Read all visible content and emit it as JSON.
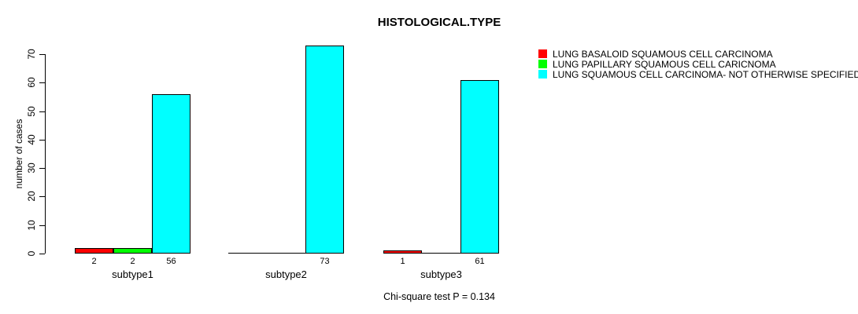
{
  "chart_data": {
    "type": "bar",
    "title": "HISTOLOGICAL.TYPE",
    "ylabel": "number of cases",
    "xlabel": "",
    "annotation": "Chi-square test P = 0.134",
    "categories": [
      "subtype1",
      "subtype2",
      "subtype3"
    ],
    "series": [
      {
        "name": "LUNG BASALOID SQUAMOUS CELL CARCINOMA",
        "color": "#ff0000",
        "values": [
          2,
          0,
          1
        ],
        "bar_labels": [
          "2",
          "",
          "1"
        ]
      },
      {
        "name": "LUNG PAPILLARY SQUAMOUS CELL CARICNOMA",
        "color": "#00ff00",
        "values": [
          2,
          0,
          0
        ],
        "bar_labels": [
          "2",
          "",
          ""
        ]
      },
      {
        "name": "LUNG SQUAMOUS CELL CARCINOMA- NOT OTHERWISE SPECIFIED",
        "color": "#00ffff",
        "values": [
          56,
          73,
          61
        ],
        "bar_labels": [
          "56",
          "73",
          "61"
        ]
      }
    ],
    "yticks": [
      0,
      10,
      20,
      30,
      40,
      50,
      60,
      70
    ],
    "ylim": [
      0,
      70
    ],
    "legend_position": "right",
    "grid": false,
    "background_color": "#ffffff",
    "text_color": "#000000"
  }
}
